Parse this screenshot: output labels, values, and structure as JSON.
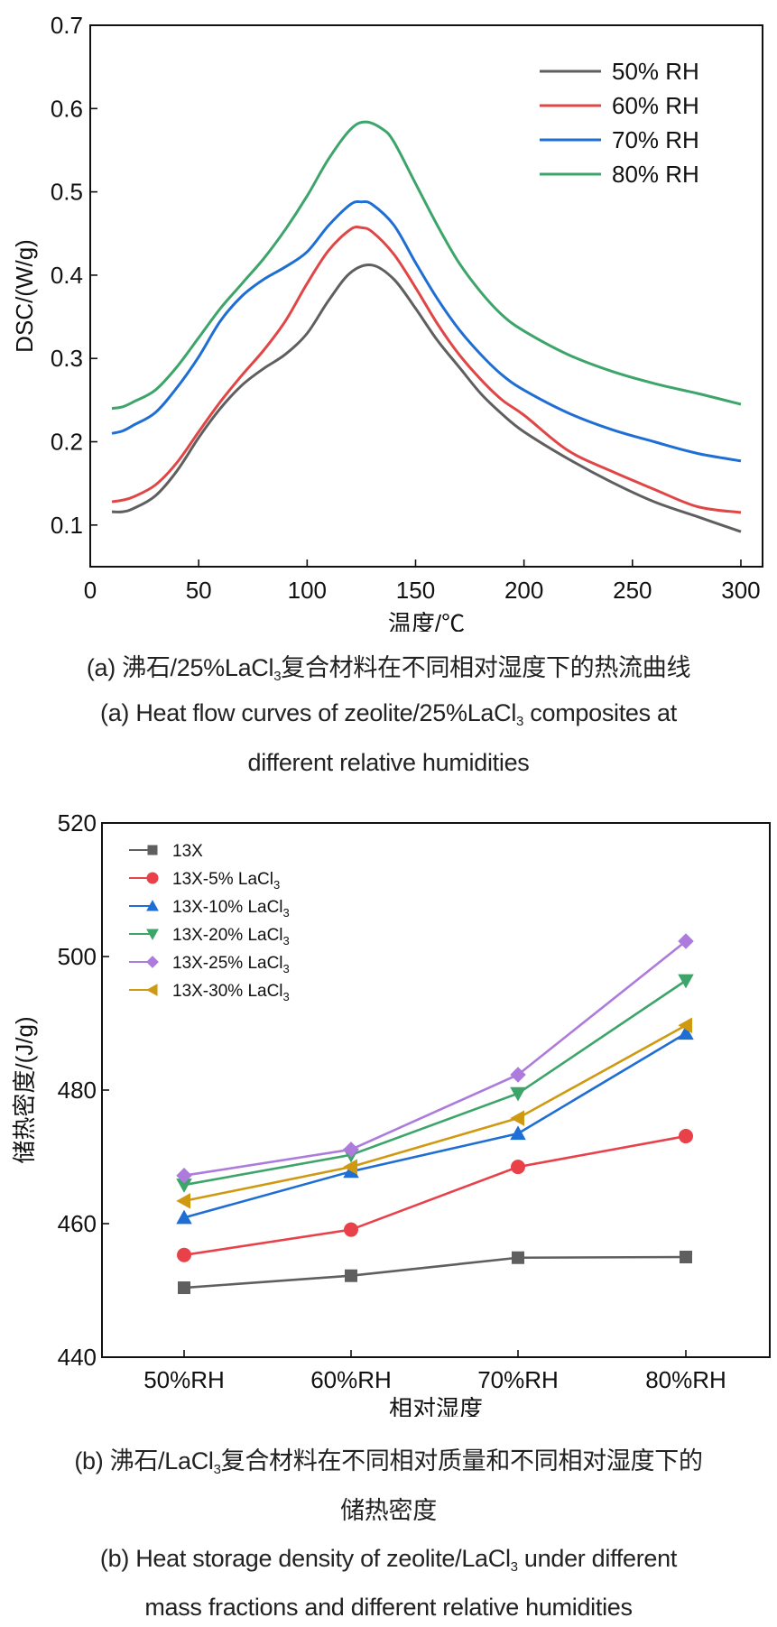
{
  "chart_data": [
    {
      "type": "line",
      "panel": "a",
      "xlabel": "温度/℃",
      "ylabel": "DSC/(W/g)",
      "xlim": [
        0,
        310
      ],
      "ylim": [
        0.05,
        0.7
      ],
      "xticks": [
        0,
        50,
        100,
        150,
        200,
        250,
        300
      ],
      "yticks": [
        0.1,
        0.2,
        0.3,
        0.4,
        0.5,
        0.6,
        0.7
      ],
      "grid": false,
      "legend_position": "top-right",
      "series": [
        {
          "name": "50% RH",
          "color": "#5f5f5f",
          "x": [
            10,
            15,
            20,
            30,
            40,
            50,
            60,
            70,
            80,
            90,
            100,
            110,
            120,
            130,
            140,
            150,
            160,
            170,
            180,
            190,
            200,
            220,
            240,
            260,
            280,
            300
          ],
          "y": [
            0.116,
            0.116,
            0.12,
            0.135,
            0.165,
            0.205,
            0.24,
            0.268,
            0.288,
            0.305,
            0.33,
            0.37,
            0.403,
            0.412,
            0.395,
            0.36,
            0.322,
            0.29,
            0.258,
            0.233,
            0.212,
            0.18,
            0.152,
            0.128,
            0.11,
            0.092
          ]
        },
        {
          "name": "60% RH",
          "color": "#e04646",
          "x": [
            10,
            15,
            20,
            30,
            40,
            50,
            60,
            70,
            80,
            90,
            100,
            110,
            120,
            125,
            130,
            140,
            150,
            160,
            170,
            180,
            190,
            200,
            220,
            240,
            260,
            280,
            300
          ],
          "y": [
            0.128,
            0.13,
            0.134,
            0.148,
            0.175,
            0.212,
            0.248,
            0.28,
            0.31,
            0.345,
            0.39,
            0.43,
            0.455,
            0.457,
            0.452,
            0.425,
            0.385,
            0.342,
            0.305,
            0.275,
            0.25,
            0.232,
            0.19,
            0.165,
            0.143,
            0.122,
            0.115
          ]
        },
        {
          "name": "70% RH",
          "color": "#1f6ed4",
          "x": [
            10,
            15,
            20,
            30,
            40,
            50,
            60,
            70,
            80,
            90,
            100,
            110,
            120,
            125,
            130,
            140,
            150,
            160,
            170,
            180,
            190,
            200,
            220,
            240,
            260,
            280,
            300
          ],
          "y": [
            0.21,
            0.213,
            0.22,
            0.235,
            0.265,
            0.302,
            0.345,
            0.375,
            0.395,
            0.41,
            0.428,
            0.46,
            0.485,
            0.488,
            0.485,
            0.46,
            0.415,
            0.372,
            0.335,
            0.305,
            0.28,
            0.262,
            0.235,
            0.215,
            0.2,
            0.186,
            0.177
          ]
        },
        {
          "name": "80% RH",
          "color": "#3da46a",
          "x": [
            10,
            15,
            20,
            30,
            40,
            50,
            60,
            70,
            80,
            90,
            100,
            110,
            120,
            127,
            135,
            140,
            150,
            160,
            170,
            180,
            190,
            200,
            220,
            240,
            260,
            280,
            300
          ],
          "y": [
            0.24,
            0.242,
            0.248,
            0.262,
            0.29,
            0.325,
            0.36,
            0.39,
            0.42,
            0.455,
            0.495,
            0.54,
            0.575,
            0.584,
            0.575,
            0.56,
            0.51,
            0.46,
            0.415,
            0.38,
            0.352,
            0.333,
            0.305,
            0.285,
            0.27,
            0.258,
            0.245
          ]
        }
      ]
    },
    {
      "type": "line",
      "panel": "b",
      "xlabel": "相对湿度",
      "ylabel": "储热密度/(J/g)",
      "categories": [
        "50%RH",
        "60%RH",
        "70%RH",
        "80%RH"
      ],
      "ylim": [
        440,
        520
      ],
      "yticks": [
        440,
        460,
        480,
        500,
        520
      ],
      "grid": false,
      "legend_position": "top-left",
      "series": [
        {
          "name": "13X",
          "sub": "",
          "marker": "square",
          "color": "#5f5f5f",
          "values": [
            450.4,
            452.2,
            454.9,
            455.0
          ]
        },
        {
          "name": "13X-5% LaCl",
          "sub": "3",
          "marker": "circle",
          "color": "#e8414a",
          "values": [
            455.3,
            459.1,
            468.5,
            473.1
          ]
        },
        {
          "name": "13X-10% LaCl",
          "sub": "3",
          "marker": "triangle-up",
          "color": "#1f6ed4",
          "values": [
            460.9,
            467.8,
            473.5,
            488.5
          ]
        },
        {
          "name": "13X-20% LaCl",
          "sub": "3",
          "marker": "triangle-down",
          "color": "#3da46a",
          "values": [
            465.8,
            470.3,
            479.5,
            496.4
          ]
        },
        {
          "name": "13X-25% LaCl",
          "sub": "3",
          "marker": "diamond",
          "color": "#ad7bdb",
          "values": [
            467.2,
            471.1,
            482.3,
            502.3
          ]
        },
        {
          "name": "13X-30% LaCl",
          "sub": "3",
          "marker": "triangle-left",
          "color": "#cf9a12",
          "values": [
            463.4,
            468.5,
            475.8,
            489.7
          ]
        }
      ]
    }
  ],
  "captions": {
    "a_cn_pre": "(a) 沸石/25%LaCl",
    "a_cn_sub": "3",
    "a_cn_post": "复合材料在不同相对湿度下的热流曲线",
    "a_en_pre": "(a) Heat flow curves of zeolite/25%LaCl",
    "a_en_sub": "3",
    "a_en_post": " composites at",
    "a_en_line2": "different relative humidities",
    "b_cn_pre": "(b) 沸石/LaCl",
    "b_cn_sub": "3",
    "b_cn_post": "复合材料在不同相对质量和不同相对湿度下的",
    "b_cn_line2": "储热密度",
    "b_en_pre": "(b) Heat storage density of zeolite/LaCl",
    "b_en_sub": "3",
    "b_en_post": " under different",
    "b_en_line2": "mass fractions and different relative humidities"
  }
}
